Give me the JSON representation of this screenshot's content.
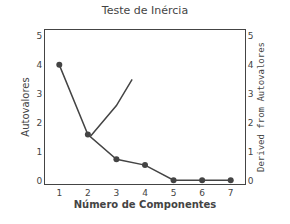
{
  "chart_data": {
    "type": "line",
    "title": "Teste de Inércia",
    "xlabel": "Número de Componentes",
    "ylabel": "Autovalores",
    "y2label": "Derived from Autovalores",
    "series": [
      {
        "x": [
          1,
          2,
          3,
          4,
          5,
          6,
          7
        ],
        "values": [
          4.0,
          1.6,
          0.75,
          0.55,
          0.03,
          0.03,
          0.03
        ],
        "color": "#444444",
        "marker": "circle",
        "line_style": "solid"
      },
      {
        "x": [
          2.1,
          3.0,
          3.55
        ],
        "values": [
          1.55,
          2.6,
          3.5
        ],
        "color": "#444444",
        "line_style": "solid"
      }
    ],
    "xlim": [
      0.5,
      7.5
    ],
    "xticks": [
      1,
      2,
      3,
      4,
      5,
      6,
      7
    ],
    "ylim": [
      -0.1,
      5.2
    ],
    "yticks": [
      0,
      1,
      2,
      3,
      4,
      5
    ],
    "y2lim": [
      -0.1,
      5.2
    ],
    "y2ticks": [
      0,
      1,
      2,
      3,
      4,
      5
    ],
    "grid": false
  }
}
